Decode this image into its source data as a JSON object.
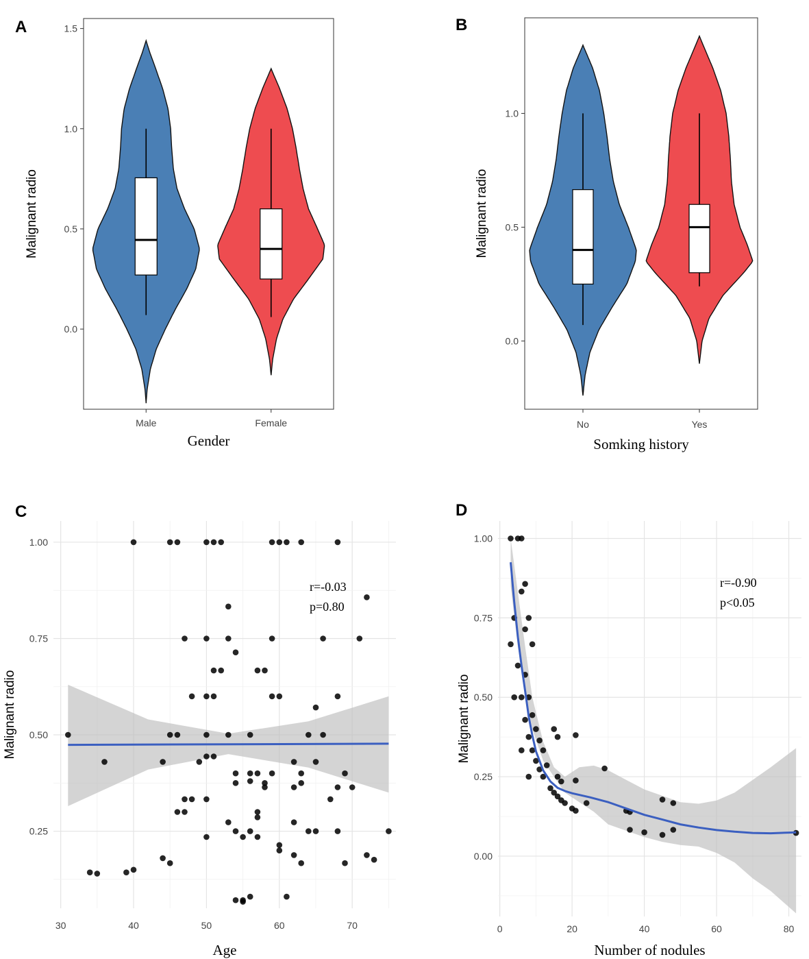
{
  "chart_data": [
    {
      "panel": "A",
      "type": "violin",
      "xlabel": "Gender",
      "ylabel": "Malignant radio",
      "ylim": [
        -0.4,
        1.55
      ],
      "yticks": [
        "0.0",
        "0.5",
        "1.0",
        "1.5"
      ],
      "ytick_values": [
        0.0,
        0.5,
        1.0,
        1.5
      ],
      "categories": [
        "Male",
        "Female"
      ],
      "colors": [
        "#4a7fb5",
        "#ee4c50"
      ],
      "violins": [
        {
          "name": "Male",
          "ymin": -0.37,
          "ymax": 1.44,
          "profile": [
            [
              -0.37,
              0.0
            ],
            [
              -0.3,
              0.02
            ],
            [
              -0.2,
              0.08
            ],
            [
              -0.1,
              0.19
            ],
            [
              0.0,
              0.36
            ],
            [
              0.1,
              0.55
            ],
            [
              0.2,
              0.76
            ],
            [
              0.3,
              0.93
            ],
            [
              0.4,
              1.0
            ],
            [
              0.5,
              0.9
            ],
            [
              0.6,
              0.72
            ],
            [
              0.7,
              0.58
            ],
            [
              0.8,
              0.51
            ],
            [
              0.9,
              0.48
            ],
            [
              1.0,
              0.46
            ],
            [
              1.1,
              0.41
            ],
            [
              1.2,
              0.31
            ],
            [
              1.3,
              0.18
            ],
            [
              1.38,
              0.07
            ],
            [
              1.44,
              0.0
            ]
          ],
          "box": {
            "whisker_low": 0.07,
            "q1": 0.27,
            "median": 0.445,
            "q3": 0.755,
            "whisker_high": 1.0
          }
        },
        {
          "name": "Female",
          "ymin": -0.23,
          "ymax": 1.3,
          "profile": [
            [
              -0.23,
              0.0
            ],
            [
              -0.15,
              0.03
            ],
            [
              -0.05,
              0.1
            ],
            [
              0.05,
              0.22
            ],
            [
              0.15,
              0.42
            ],
            [
              0.25,
              0.7
            ],
            [
              0.35,
              0.97
            ],
            [
              0.42,
              1.0
            ],
            [
              0.5,
              0.87
            ],
            [
              0.6,
              0.7
            ],
            [
              0.7,
              0.6
            ],
            [
              0.8,
              0.53
            ],
            [
              0.9,
              0.47
            ],
            [
              1.0,
              0.4
            ],
            [
              1.1,
              0.3
            ],
            [
              1.2,
              0.16
            ],
            [
              1.3,
              0.0
            ]
          ],
          "box": {
            "whisker_low": 0.06,
            "q1": 0.25,
            "median": 0.4,
            "q3": 0.6,
            "whisker_high": 1.0
          }
        }
      ]
    },
    {
      "panel": "B",
      "type": "violin",
      "xlabel": "Somking history",
      "ylabel": "Malignant radio",
      "ylim": [
        -0.3,
        1.42
      ],
      "yticks": [
        "0.0",
        "0.5",
        "1.0"
      ],
      "ytick_values": [
        0.0,
        0.5,
        1.0
      ],
      "categories": [
        "No",
        "Yes"
      ],
      "colors": [
        "#4a7fb5",
        "#ee4c50"
      ],
      "violins": [
        {
          "name": "No",
          "ymin": -0.24,
          "ymax": 1.3,
          "profile": [
            [
              -0.24,
              0.0
            ],
            [
              -0.15,
              0.04
            ],
            [
              -0.05,
              0.13
            ],
            [
              0.05,
              0.3
            ],
            [
              0.15,
              0.55
            ],
            [
              0.25,
              0.82
            ],
            [
              0.35,
              0.98
            ],
            [
              0.4,
              1.0
            ],
            [
              0.5,
              0.85
            ],
            [
              0.6,
              0.68
            ],
            [
              0.7,
              0.57
            ],
            [
              0.8,
              0.5
            ],
            [
              0.9,
              0.45
            ],
            [
              1.0,
              0.39
            ],
            [
              1.1,
              0.31
            ],
            [
              1.2,
              0.18
            ],
            [
              1.3,
              0.0
            ]
          ],
          "box": {
            "whisker_low": 0.07,
            "q1": 0.25,
            "median": 0.4,
            "q3": 0.665,
            "whisker_high": 1.0
          }
        },
        {
          "name": "Yes",
          "ymin": -0.1,
          "ymax": 1.34,
          "profile": [
            [
              -0.1,
              0.0
            ],
            [
              0.0,
              0.05
            ],
            [
              0.1,
              0.18
            ],
            [
              0.2,
              0.44
            ],
            [
              0.3,
              0.83
            ],
            [
              0.35,
              1.0
            ],
            [
              0.42,
              0.9
            ],
            [
              0.5,
              0.76
            ],
            [
              0.6,
              0.65
            ],
            [
              0.7,
              0.6
            ],
            [
              0.8,
              0.58
            ],
            [
              0.9,
              0.55
            ],
            [
              1.0,
              0.5
            ],
            [
              1.1,
              0.4
            ],
            [
              1.2,
              0.25
            ],
            [
              1.3,
              0.07
            ],
            [
              1.34,
              0.0
            ]
          ],
          "box": {
            "whisker_low": 0.24,
            "q1": 0.3,
            "median": 0.5,
            "q3": 0.6,
            "whisker_high": 1.0
          }
        }
      ]
    },
    {
      "panel": "C",
      "type": "scatter",
      "xlabel": "Age",
      "ylabel": "Malignant radio",
      "xlim": [
        29,
        76
      ],
      "ylim": [
        0.05,
        1.055
      ],
      "xticks": [
        "30",
        "40",
        "50",
        "60",
        "70"
      ],
      "xtick_values": [
        30,
        40,
        50,
        60,
        70
      ],
      "yticks": [
        "0.25",
        "0.50",
        "0.75",
        "1.00"
      ],
      "ytick_values": [
        0.25,
        0.5,
        0.75,
        1.0
      ],
      "annotation": [
        "r=-0.03",
        "p=0.80"
      ],
      "fit_line": [
        [
          31,
          0.474
        ],
        [
          75,
          0.477
        ]
      ],
      "ci_band": {
        "x": [
          31,
          42,
          53,
          64,
          75
        ],
        "upper": [
          0.63,
          0.54,
          0.503,
          0.535,
          0.6
        ],
        "lower": [
          0.315,
          0.41,
          0.45,
          0.415,
          0.35
        ]
      },
      "points": [
        [
          31,
          0.5
        ],
        [
          34,
          0.143
        ],
        [
          35,
          0.14
        ],
        [
          36,
          0.43
        ],
        [
          39,
          0.143
        ],
        [
          40,
          0.15
        ],
        [
          40,
          1.0
        ],
        [
          44,
          0.43
        ],
        [
          44,
          0.18
        ],
        [
          45,
          1.0
        ],
        [
          45,
          0.5
        ],
        [
          45,
          0.167
        ],
        [
          46,
          1.0
        ],
        [
          46,
          0.5
        ],
        [
          46,
          0.3
        ],
        [
          47,
          0.75
        ],
        [
          47,
          0.333
        ],
        [
          47,
          0.3
        ],
        [
          48,
          0.6
        ],
        [
          48,
          0.333
        ],
        [
          49,
          0.43
        ],
        [
          50,
          1.0
        ],
        [
          50,
          0.75
        ],
        [
          50,
          0.6
        ],
        [
          50,
          0.5
        ],
        [
          50,
          0.444
        ],
        [
          50,
          0.333
        ],
        [
          50,
          0.235
        ],
        [
          51,
          1.0
        ],
        [
          51,
          0.667
        ],
        [
          51,
          0.6
        ],
        [
          51,
          0.444
        ],
        [
          52,
          1.0
        ],
        [
          52,
          0.667
        ],
        [
          53,
          0.833
        ],
        [
          53,
          0.75
        ],
        [
          53,
          0.5
        ],
        [
          53,
          0.273
        ],
        [
          54,
          0.714
        ],
        [
          54,
          0.4
        ],
        [
          54,
          0.375
        ],
        [
          54,
          0.25
        ],
        [
          54,
          0.071
        ],
        [
          55,
          0.235
        ],
        [
          55,
          0.067
        ],
        [
          55,
          0.071
        ],
        [
          56,
          0.5
        ],
        [
          56,
          0.4
        ],
        [
          56,
          0.38
        ],
        [
          56,
          0.25
        ],
        [
          56,
          0.08
        ],
        [
          57,
          0.667
        ],
        [
          57,
          0.4
        ],
        [
          57,
          0.3
        ],
        [
          57,
          0.286
        ],
        [
          57,
          0.235
        ],
        [
          58,
          0.667
        ],
        [
          58,
          0.375
        ],
        [
          58,
          0.364
        ],
        [
          59,
          1.0
        ],
        [
          59,
          0.75
        ],
        [
          59,
          0.6
        ],
        [
          59,
          0.4
        ],
        [
          60,
          1.0
        ],
        [
          60,
          0.6
        ],
        [
          60,
          0.214
        ],
        [
          60,
          0.2
        ],
        [
          61,
          1.0
        ],
        [
          61,
          0.08
        ],
        [
          62,
          0.43
        ],
        [
          62,
          0.364
        ],
        [
          62,
          0.273
        ],
        [
          62,
          0.188
        ],
        [
          63,
          1.0
        ],
        [
          63,
          0.4
        ],
        [
          63,
          0.375
        ],
        [
          63,
          0.167
        ],
        [
          64,
          0.5
        ],
        [
          64,
          0.25
        ],
        [
          65,
          0.571
        ],
        [
          65,
          0.43
        ],
        [
          65,
          0.25
        ],
        [
          66,
          0.75
        ],
        [
          66,
          0.5
        ],
        [
          67,
          0.333
        ],
        [
          68,
          1.0
        ],
        [
          68,
          0.6
        ],
        [
          68,
          0.364
        ],
        [
          68,
          0.25
        ],
        [
          69,
          0.4
        ],
        [
          69,
          0.167
        ],
        [
          70,
          0.364
        ],
        [
          71,
          0.75
        ],
        [
          72,
          0.857
        ],
        [
          72,
          0.188
        ],
        [
          73,
          0.176
        ],
        [
          75,
          0.25
        ]
      ]
    },
    {
      "panel": "D",
      "type": "scatter",
      "xlabel": "Number of  nodules",
      "ylabel": "Malignant radio",
      "xlim": [
        -0.5,
        83.5
      ],
      "ylim": [
        -0.19,
        1.055
      ],
      "xticks": [
        "0",
        "20",
        "40",
        "60",
        "80"
      ],
      "xtick_values": [
        0,
        20,
        40,
        60,
        80
      ],
      "yticks": [
        "0.00",
        "0.25",
        "0.50",
        "0.75",
        "1.00"
      ],
      "ytick_values": [
        0.0,
        0.25,
        0.5,
        0.75,
        1.0
      ],
      "annotation": [
        "r=-0.90",
        "p<0.05"
      ],
      "fit_line": [
        [
          3,
          0.925
        ],
        [
          4,
          0.8
        ],
        [
          5,
          0.69
        ],
        [
          6,
          0.6
        ],
        [
          7,
          0.52
        ],
        [
          8,
          0.44
        ],
        [
          9,
          0.38
        ],
        [
          10,
          0.33
        ],
        [
          12,
          0.27
        ],
        [
          14,
          0.235
        ],
        [
          16,
          0.215
        ],
        [
          18,
          0.205
        ],
        [
          20,
          0.198
        ],
        [
          25,
          0.185
        ],
        [
          30,
          0.17
        ],
        [
          35,
          0.15
        ],
        [
          40,
          0.13
        ],
        [
          45,
          0.115
        ],
        [
          50,
          0.1
        ],
        [
          55,
          0.09
        ],
        [
          60,
          0.082
        ],
        [
          65,
          0.077
        ],
        [
          70,
          0.073
        ],
        [
          75,
          0.072
        ],
        [
          80,
          0.074
        ],
        [
          82,
          0.075
        ]
      ],
      "ci_band": {
        "x": [
          3,
          5,
          7,
          9,
          12,
          15,
          18,
          22,
          26,
          30,
          35,
          40,
          45,
          50,
          55,
          60,
          65,
          70,
          75,
          82
        ],
        "upper": [
          1.0,
          0.83,
          0.66,
          0.5,
          0.36,
          0.28,
          0.25,
          0.28,
          0.285,
          0.27,
          0.24,
          0.21,
          0.19,
          0.17,
          0.165,
          0.175,
          0.2,
          0.24,
          0.28,
          0.34
        ],
        "lower": [
          0.85,
          0.66,
          0.52,
          0.4,
          0.3,
          0.25,
          0.2,
          0.17,
          0.14,
          0.1,
          0.08,
          0.06,
          0.045,
          0.035,
          0.03,
          0.01,
          -0.02,
          -0.07,
          -0.11,
          -0.18
        ]
      },
      "points": [
        [
          3,
          1.0
        ],
        [
          3,
          0.667
        ],
        [
          4,
          0.75
        ],
        [
          4,
          0.5
        ],
        [
          5,
          1.0
        ],
        [
          5,
          0.6
        ],
        [
          6,
          1.0
        ],
        [
          6,
          0.833
        ],
        [
          6,
          0.5
        ],
        [
          6,
          0.333
        ],
        [
          7,
          0.857
        ],
        [
          7,
          0.714
        ],
        [
          7,
          0.571
        ],
        [
          7,
          0.429
        ],
        [
          8,
          0.75
        ],
        [
          8,
          0.5
        ],
        [
          8,
          0.375
        ],
        [
          8,
          0.25
        ],
        [
          9,
          0.667
        ],
        [
          9,
          0.444
        ],
        [
          9,
          0.333
        ],
        [
          10,
          0.4
        ],
        [
          10,
          0.3
        ],
        [
          11,
          0.364
        ],
        [
          11,
          0.273
        ],
        [
          12,
          0.333
        ],
        [
          12,
          0.25
        ],
        [
          13,
          0.286
        ],
        [
          14,
          0.214
        ],
        [
          15,
          0.4
        ],
        [
          15,
          0.2
        ],
        [
          16,
          0.375
        ],
        [
          16,
          0.25
        ],
        [
          16,
          0.188
        ],
        [
          17,
          0.235
        ],
        [
          17,
          0.176
        ],
        [
          18,
          0.167
        ],
        [
          20,
          0.15
        ],
        [
          21,
          0.381
        ],
        [
          21,
          0.238
        ],
        [
          21,
          0.143
        ],
        [
          24,
          0.167
        ],
        [
          29,
          0.276
        ],
        [
          35,
          0.143
        ],
        [
          36,
          0.139
        ],
        [
          36,
          0.083
        ],
        [
          40,
          0.075
        ],
        [
          45,
          0.178
        ],
        [
          45,
          0.067
        ],
        [
          48,
          0.167
        ],
        [
          48,
          0.083
        ],
        [
          82,
          0.073
        ]
      ]
    }
  ]
}
